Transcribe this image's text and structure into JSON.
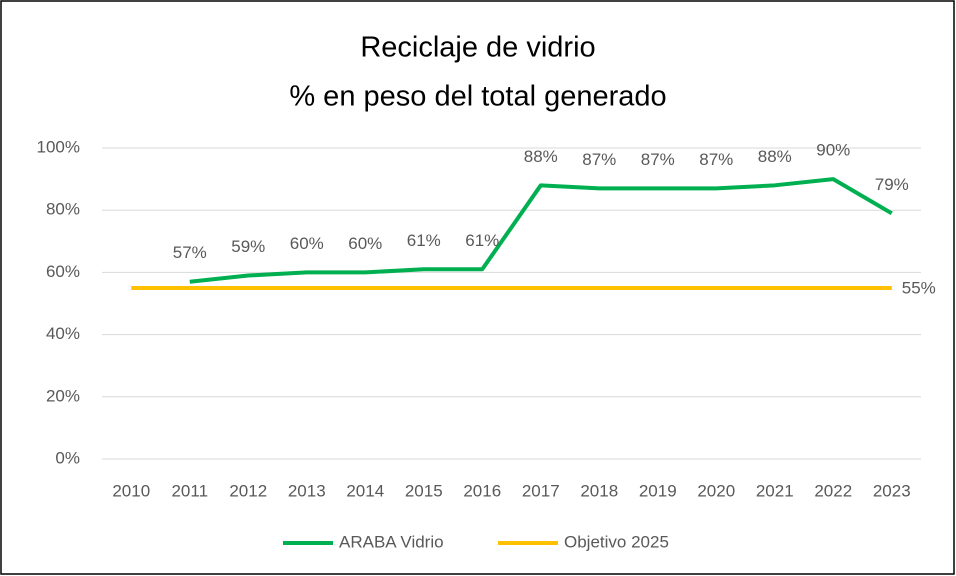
{
  "chart_data": {
    "type": "line",
    "title": "Reciclaje de vidrio",
    "subtitle": "% en peso del total generado",
    "categories": [
      "2010",
      "2011",
      "2012",
      "2013",
      "2014",
      "2015",
      "2016",
      "2017",
      "2018",
      "2019",
      "2020",
      "2021",
      "2022",
      "2023"
    ],
    "series": [
      {
        "name": "ARABA Vidrio",
        "color": "#00b050",
        "values": [
          null,
          57,
          59,
          60,
          60,
          61,
          61,
          88,
          87,
          87,
          87,
          88,
          90,
          79
        ],
        "value_labels": [
          null,
          "57%",
          "59%",
          "60%",
          "60%",
          "61%",
          "61%",
          "88%",
          "87%",
          "87%",
          "87%",
          "88%",
          "90%",
          "79%"
        ]
      },
      {
        "name": "Objetivo 2025",
        "color": "#ffc000",
        "values": [
          55,
          55,
          55,
          55,
          55,
          55,
          55,
          55,
          55,
          55,
          55,
          55,
          55,
          55
        ],
        "value_labels": [
          null,
          null,
          null,
          null,
          null,
          null,
          null,
          null,
          null,
          null,
          null,
          null,
          null,
          "55%"
        ]
      }
    ],
    "ylim": [
      0,
      100
    ],
    "yticks": [
      {
        "value": 0,
        "label": "0%"
      },
      {
        "value": 20,
        "label": "20%"
      },
      {
        "value": 40,
        "label": "40%"
      },
      {
        "value": 60,
        "label": "60%"
      },
      {
        "value": 80,
        "label": "80%"
      },
      {
        "value": 100,
        "label": "100%"
      }
    ],
    "grid": true,
    "legend": "bottom"
  }
}
